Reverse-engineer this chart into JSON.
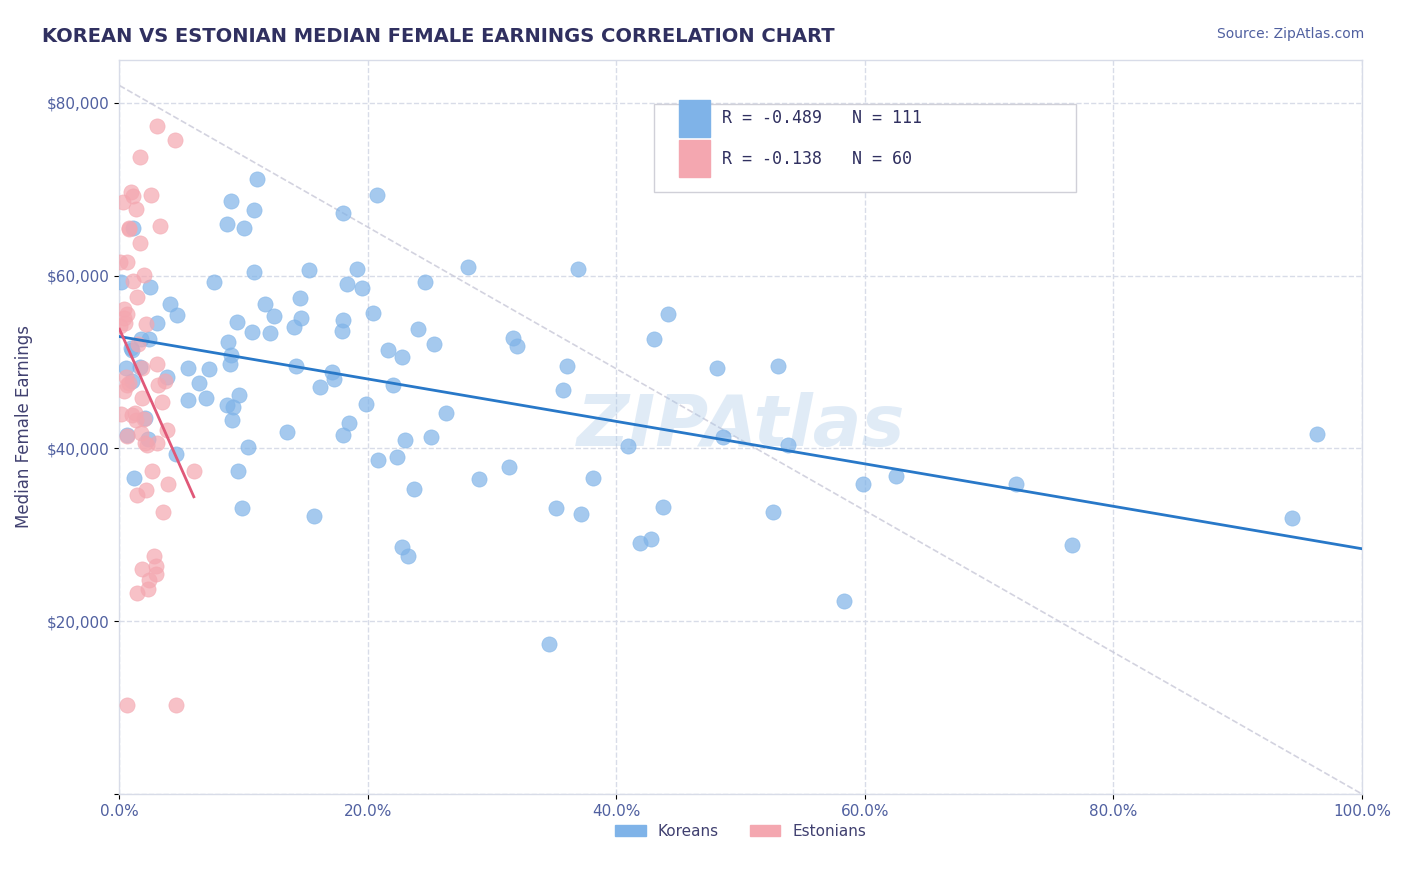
{
  "title": "KOREAN VS ESTONIAN MEDIAN FEMALE EARNINGS CORRELATION CHART",
  "source": "Source: ZipAtlas.com",
  "xlabel": "",
  "ylabel": "Median Female Earnings",
  "xlim": [
    0,
    1.0
  ],
  "ylim": [
    0,
    85000
  ],
  "yticks": [
    0,
    20000,
    40000,
    60000,
    80000
  ],
  "ytick_labels": [
    "",
    "$20,000",
    "$40,000",
    "$60,000",
    "$80,000"
  ],
  "xtick_labels": [
    "0.0%",
    "20.0%",
    "40.0%",
    "60.0%",
    "80.0%",
    "100.0%"
  ],
  "xticks": [
    0,
    0.2,
    0.4,
    0.6,
    0.8,
    1.0
  ],
  "korean_color": "#7fb3e8",
  "estonian_color": "#f4a7b0",
  "korean_line_color": "#2878c8",
  "estonian_line_color": "#e05878",
  "diagonal_color": "#c8c8d8",
  "watermark": "ZIPAtlas",
  "legend_korean": "R = -0.489   N = 111",
  "legend_estonian": "R = -0.138   N = 60",
  "legend_label_korean": "Koreans",
  "legend_label_estonian": "Estonians",
  "korean_R": -0.489,
  "korean_N": 111,
  "estonian_R": -0.138,
  "estonian_N": 60,
  "background_color": "#ffffff",
  "grid_color": "#d8dce8",
  "title_color": "#303060",
  "axis_label_color": "#404070",
  "tick_color": "#5060a0",
  "source_color": "#5060a0"
}
